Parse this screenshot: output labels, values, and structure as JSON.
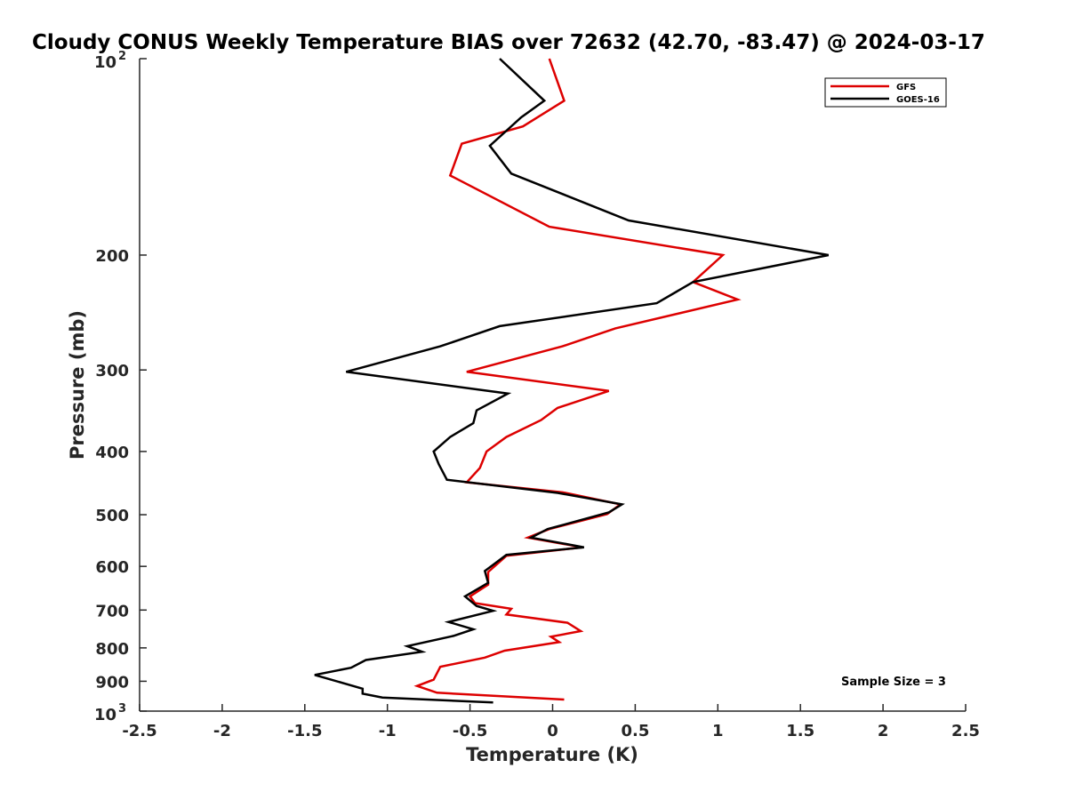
{
  "chart_data": {
    "type": "line",
    "title": "Cloudy CONUS Weekly Temperature BIAS over 72632 (42.70, -83.47) @ 2024-03-17",
    "xlabel": "Temperature (K)",
    "ylabel": "Pressure (mb)",
    "xlim": [
      -2.5,
      2.5
    ],
    "ylim": [
      100,
      1000
    ],
    "y_scale": "log",
    "y_reversed": true,
    "xticks": [
      "-2.5",
      "-2",
      "-1.5",
      "-1",
      "-0.5",
      "0",
      "0.5",
      "1",
      "1.5",
      "2",
      "2.5"
    ],
    "yticks": [
      {
        "value": 200,
        "label": "200"
      },
      {
        "value": 300,
        "label": "300"
      },
      {
        "value": 400,
        "label": "400"
      },
      {
        "value": 500,
        "label": "500"
      },
      {
        "value": 600,
        "label": "600"
      },
      {
        "value": 700,
        "label": "700"
      },
      {
        "value": 800,
        "label": "800"
      },
      {
        "value": 900,
        "label": "900"
      }
    ],
    "y_end_ticks": {
      "top": {
        "value": 100,
        "base": "10",
        "exp": "2"
      },
      "bottom": {
        "value": 1000,
        "base": "10",
        "exp": "3"
      }
    },
    "legend": {
      "position": "top-right",
      "entries": [
        {
          "name": "GFS",
          "color": "#dd0000"
        },
        {
          "name": "GOES-16",
          "color": "#000000"
        }
      ]
    },
    "annotation": "Sample Size = 3",
    "grid": false,
    "series": [
      {
        "name": "GFS",
        "color": "#dd0000",
        "points": [
          [
            -0.02,
            100
          ],
          [
            0.07,
            116
          ],
          [
            -0.18,
            127
          ],
          [
            -0.55,
            135
          ],
          [
            -0.62,
            151
          ],
          [
            -0.02,
            181
          ],
          [
            1.03,
            200
          ],
          [
            0.85,
            220
          ],
          [
            1.12,
            234
          ],
          [
            0.38,
            259
          ],
          [
            0.06,
            276
          ],
          [
            -0.52,
            302
          ],
          [
            0.34,
            323
          ],
          [
            0.03,
            343
          ],
          [
            -0.07,
            358
          ],
          [
            -0.28,
            380
          ],
          [
            -0.4,
            400
          ],
          [
            -0.44,
            424
          ],
          [
            -0.52,
            446
          ],
          [
            0.06,
            462
          ],
          [
            0.41,
            482
          ],
          [
            0.33,
            499
          ],
          [
            -0.02,
            526
          ],
          [
            -0.15,
            542
          ],
          [
            0.18,
            561
          ],
          [
            -0.28,
            578
          ],
          [
            -0.39,
            612
          ],
          [
            -0.39,
            640
          ],
          [
            -0.5,
            667
          ],
          [
            -0.47,
            683
          ],
          [
            -0.25,
            697
          ],
          [
            -0.28,
            711
          ],
          [
            0.09,
            732
          ],
          [
            0.17,
            754
          ],
          [
            -0.01,
            769
          ],
          [
            0.04,
            784
          ],
          [
            -0.29,
            808
          ],
          [
            -0.41,
            828
          ],
          [
            -0.68,
            855
          ],
          [
            -0.72,
            895
          ],
          [
            -0.82,
            915
          ],
          [
            -0.7,
            937
          ],
          [
            0.07,
            960
          ]
        ]
      },
      {
        "name": "GOES-16",
        "color": "#000000",
        "points": [
          [
            -0.32,
            100
          ],
          [
            -0.05,
            116
          ],
          [
            -0.19,
            123
          ],
          [
            -0.38,
            136
          ],
          [
            -0.25,
            150
          ],
          [
            0.46,
            177
          ],
          [
            1.67,
            200
          ],
          [
            0.85,
            220
          ],
          [
            0.63,
            237
          ],
          [
            -0.32,
            257
          ],
          [
            -0.68,
            276
          ],
          [
            -1.25,
            302
          ],
          [
            -0.27,
            326
          ],
          [
            -0.46,
            346
          ],
          [
            -0.48,
            362
          ],
          [
            -0.62,
            380
          ],
          [
            -0.72,
            400
          ],
          [
            -0.69,
            418
          ],
          [
            -0.64,
            442
          ],
          [
            0.03,
            463
          ],
          [
            0.42,
            482
          ],
          [
            0.34,
            496
          ],
          [
            -0.03,
            526
          ],
          [
            -0.13,
            542
          ],
          [
            0.19,
            561
          ],
          [
            -0.28,
            576
          ],
          [
            -0.41,
            610
          ],
          [
            -0.39,
            636
          ],
          [
            -0.53,
            667
          ],
          [
            -0.46,
            690
          ],
          [
            -0.36,
            702
          ],
          [
            -0.63,
            730
          ],
          [
            -0.48,
            749
          ],
          [
            -0.6,
            767
          ],
          [
            -0.88,
            795
          ],
          [
            -0.79,
            811
          ],
          [
            -1.13,
            835
          ],
          [
            -1.22,
            858
          ],
          [
            -1.44,
            880
          ],
          [
            -1.15,
            924
          ],
          [
            -1.15,
            940
          ],
          [
            -1.03,
            953
          ],
          [
            -0.36,
            970
          ]
        ]
      }
    ]
  }
}
